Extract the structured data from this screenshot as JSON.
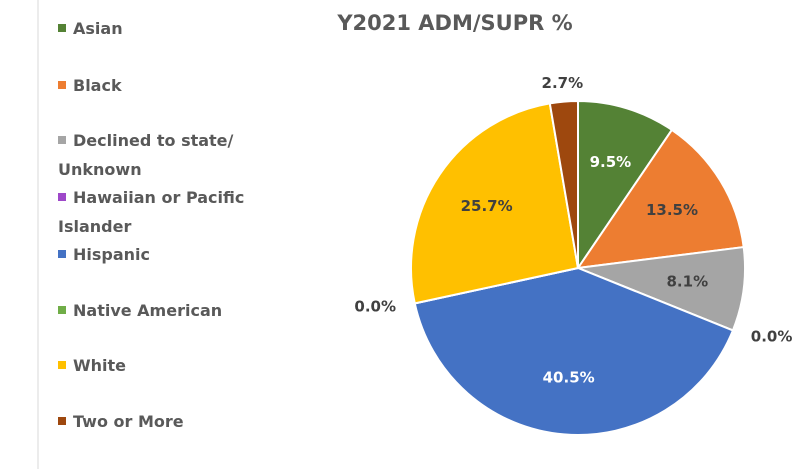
{
  "chart_data": {
    "type": "pie",
    "title": "Y2021 ADM/SUPR %",
    "categories": [
      "Asian",
      "Black",
      "Declined to state/ Unknown",
      "Hawaiian or Pacific Islander",
      "Hispanic",
      "Native American",
      "White",
      "Two or More"
    ],
    "values": [
      9.5,
      13.5,
      8.1,
      0.0,
      40.5,
      0.0,
      25.7,
      2.7
    ],
    "value_labels": [
      "9.5%",
      "13.5%",
      "8.1%",
      "0.0%",
      "40.5%",
      "0.0%",
      "25.7%",
      "2.7%"
    ],
    "colors": [
      "#548235",
      "#ed7d31",
      "#a5a5a5",
      "#9e48c9",
      "#4472c4",
      "#70ad47",
      "#ffc000",
      "#9e480e"
    ],
    "legend": "left"
  }
}
